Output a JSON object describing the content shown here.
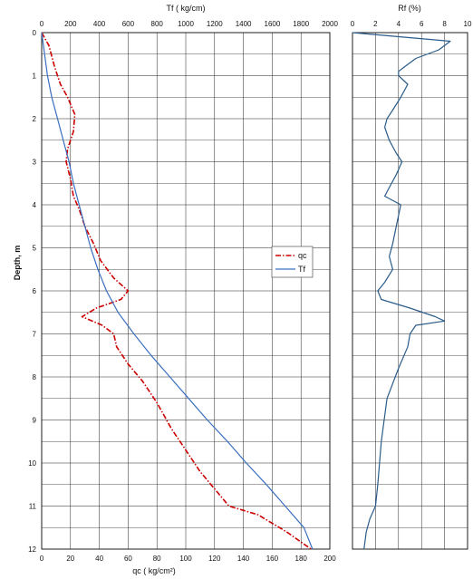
{
  "chart_data": [
    {
      "type": "line",
      "y_axis": {
        "label": "Depth, m",
        "range": [
          0,
          12
        ],
        "ticks": [
          0,
          1,
          2,
          3,
          4,
          5,
          6,
          7,
          8,
          9,
          10,
          11,
          12
        ],
        "inverted": true
      },
      "x_top": {
        "label": "Tf ( kg/cm)",
        "range": [
          0,
          2000
        ],
        "ticks": [
          0,
          200,
          400,
          600,
          800,
          1000,
          1200,
          1400,
          1600,
          1800,
          2000
        ]
      },
      "x_bottom": {
        "label": "qc  ( kg/cm²)",
        "range": [
          0,
          200
        ],
        "ticks": [
          0,
          20,
          40,
          60,
          80,
          100,
          120,
          140,
          160,
          180,
          200
        ]
      },
      "grid": true,
      "legend": {
        "position": "right-middle",
        "entries": [
          "qc",
          "Tf"
        ]
      },
      "series": [
        {
          "name": "qc",
          "axis": "bottom",
          "color": "#cc0000",
          "style": "dash-dot",
          "points": [
            [
              0,
              0
            ],
            [
              5,
              0.3
            ],
            [
              9,
              0.8
            ],
            [
              13,
              1.2
            ],
            [
              18,
              1.5
            ],
            [
              23,
              1.9
            ],
            [
              22,
              2.3
            ],
            [
              18,
              2.7
            ],
            [
              17,
              3.0
            ],
            [
              20,
              3.4
            ],
            [
              22,
              3.8
            ],
            [
              26,
              4.1
            ],
            [
              30,
              4.5
            ],
            [
              36,
              4.9
            ],
            [
              41,
              5.3
            ],
            [
              50,
              5.7
            ],
            [
              60,
              6.0
            ],
            [
              55,
              6.2
            ],
            [
              38,
              6.4
            ],
            [
              28,
              6.6
            ],
            [
              42,
              6.8
            ],
            [
              50,
              7.0
            ],
            [
              52,
              7.3
            ],
            [
              60,
              7.7
            ],
            [
              70,
              8.1
            ],
            [
              80,
              8.6
            ],
            [
              90,
              9.2
            ],
            [
              100,
              9.7
            ],
            [
              110,
              10.2
            ],
            [
              120,
              10.6
            ],
            [
              130,
              11.0
            ],
            [
              150,
              11.2
            ],
            [
              170,
              11.6
            ],
            [
              187,
              12.0
            ]
          ]
        },
        {
          "name": "Tf",
          "axis": "top",
          "color": "#3a6fbf",
          "style": "solid",
          "points": [
            [
              0,
              0
            ],
            [
              20,
              0.5
            ],
            [
              40,
              1.0
            ],
            [
              70,
              1.5
            ],
            [
              110,
              2.0
            ],
            [
              150,
              2.5
            ],
            [
              190,
              3.0
            ],
            [
              220,
              3.5
            ],
            [
              260,
              4.0
            ],
            [
              300,
              4.5
            ],
            [
              340,
              5.0
            ],
            [
              390,
              5.5
            ],
            [
              450,
              6.0
            ],
            [
              530,
              6.5
            ],
            [
              640,
              7.0
            ],
            [
              760,
              7.5
            ],
            [
              890,
              8.0
            ],
            [
              1020,
              8.5
            ],
            [
              1150,
              9.0
            ],
            [
              1290,
              9.5
            ],
            [
              1420,
              10.0
            ],
            [
              1560,
              10.5
            ],
            [
              1690,
              11.0
            ],
            [
              1820,
              11.5
            ],
            [
              1880,
              12.0
            ]
          ]
        }
      ]
    },
    {
      "type": "line",
      "x_top": {
        "label": "Rf (%)",
        "range": [
          0,
          10
        ],
        "ticks": [
          0,
          2,
          4,
          6,
          8,
          10
        ]
      },
      "y_axis": {
        "range": [
          0,
          12
        ],
        "inverted": true
      },
      "grid": true,
      "series": [
        {
          "name": "Rf",
          "color": "#2a5c8a",
          "style": "solid",
          "points": [
            [
              0,
              0
            ],
            [
              8.5,
              0.2
            ],
            [
              7.5,
              0.4
            ],
            [
              5.5,
              0.6
            ],
            [
              4.5,
              0.8
            ],
            [
              4.0,
              0.9
            ],
            [
              4.0,
              1.0
            ],
            [
              4.8,
              1.2
            ],
            [
              4.2,
              1.5
            ],
            [
              3.5,
              1.8
            ],
            [
              3.0,
              2.0
            ],
            [
              2.8,
              2.2
            ],
            [
              3.2,
              2.5
            ],
            [
              3.8,
              2.8
            ],
            [
              4.3,
              3.0
            ],
            [
              3.8,
              3.3
            ],
            [
              3.2,
              3.6
            ],
            [
              2.8,
              3.8
            ],
            [
              4.2,
              4.0
            ],
            [
              3.8,
              4.5
            ],
            [
              3.5,
              4.9
            ],
            [
              3.2,
              5.2
            ],
            [
              3.5,
              5.5
            ],
            [
              2.8,
              5.8
            ],
            [
              2.2,
              6.0
            ],
            [
              2.5,
              6.2
            ],
            [
              5.0,
              6.4
            ],
            [
              7.2,
              6.6
            ],
            [
              8.0,
              6.7
            ],
            [
              5.5,
              6.8
            ],
            [
              5.0,
              7.0
            ],
            [
              4.8,
              7.3
            ],
            [
              4.0,
              7.8
            ],
            [
              3.0,
              8.5
            ],
            [
              2.5,
              9.5
            ],
            [
              2.2,
              10.5
            ],
            [
              2.0,
              11.0
            ],
            [
              1.5,
              11.3
            ],
            [
              1.2,
              11.6
            ],
            [
              1.0,
              12.0
            ]
          ]
        }
      ]
    }
  ]
}
